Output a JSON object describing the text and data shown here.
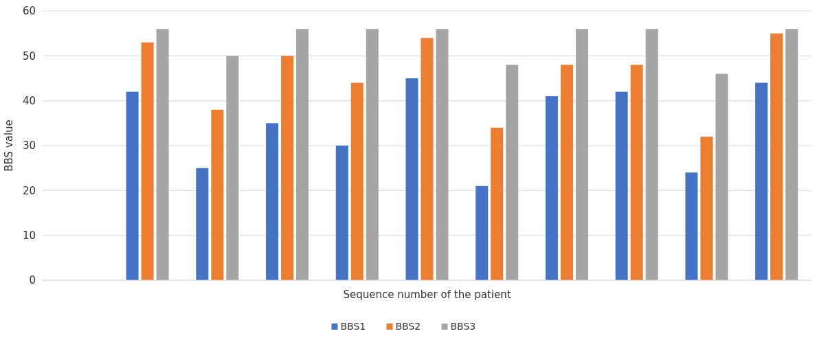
{
  "chart_data": {
    "type": "bar",
    "xlabel": "Sequence number of the patient",
    "ylabel": "BBS value",
    "categories": [
      null,
      null,
      null,
      null,
      null,
      null,
      null,
      null,
      null,
      null,
      null
    ],
    "series": [
      {
        "name": "BBS1",
        "color": "#4472c4",
        "values": [
          null,
          42,
          25,
          35,
          30,
          45,
          21,
          41,
          42,
          24,
          44
        ]
      },
      {
        "name": "BBS2",
        "color": "#ed7d31",
        "values": [
          null,
          53,
          38,
          50,
          44,
          54,
          34,
          48,
          48,
          32,
          55
        ]
      },
      {
        "name": "BBS3",
        "color": "#a5a5a5",
        "values": [
          null,
          56,
          50,
          56,
          56,
          56,
          48,
          56,
          56,
          46,
          56
        ]
      }
    ],
    "ylim": [
      0,
      60
    ],
    "yticks": [
      0,
      10,
      20,
      30,
      40,
      50,
      60
    ],
    "grid": "y",
    "legend": "bottom"
  }
}
